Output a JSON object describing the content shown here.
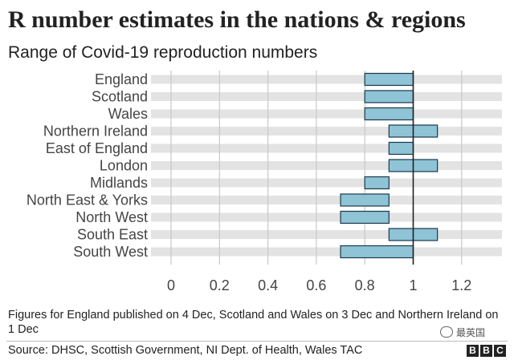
{
  "title": "R number estimates in the nations & regions",
  "subtitle": "Range of Covid-19 reproduction numbers",
  "note": "Figures for England published on 4 Dec, Scotland and Wales on 3 Dec and Northern Ireland on 1 Dec",
  "source": "Source: DHSC, Scottish Government, NI Dept. of Health, Wales TAC",
  "watermark": "最英国",
  "logo": [
    "B",
    "B",
    "C"
  ],
  "colors": {
    "bar_fill": "#8fc3d6",
    "bar_stroke": "#1a3a4a",
    "band": "#e3e3e3",
    "grid": "#c8c8c8",
    "ref_line": "#222222"
  },
  "chart_data": {
    "type": "range-bar",
    "categories": [
      "England",
      "Scotland",
      "Wales",
      "Northern Ireland",
      "East of England",
      "London",
      "Midlands",
      "North East & Yorks",
      "North West",
      "South East",
      "South West"
    ],
    "ranges": [
      [
        0.8,
        1.0
      ],
      [
        0.8,
        1.0
      ],
      [
        0.8,
        1.0
      ],
      [
        0.9,
        1.1
      ],
      [
        0.9,
        1.0
      ],
      [
        0.9,
        1.1
      ],
      [
        0.8,
        0.9
      ],
      [
        0.7,
        0.9
      ],
      [
        0.7,
        0.9
      ],
      [
        0.9,
        1.1
      ],
      [
        0.7,
        1.0
      ]
    ],
    "xlim": [
      0,
      1.3
    ],
    "xticks": [
      0,
      0.2,
      0.4,
      0.6,
      0.8,
      1,
      1.2
    ],
    "xtick_labels": [
      "0",
      "0.2",
      "0.4",
      "0.6",
      "0.8",
      "1",
      "1.2"
    ],
    "reference_line": 1,
    "grid": true
  }
}
